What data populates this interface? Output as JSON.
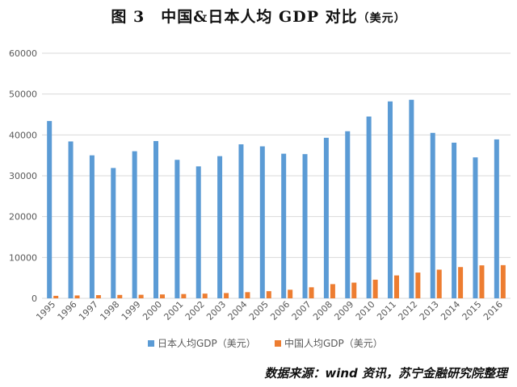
{
  "figure": {
    "title_main": "图 3　中国&日本人均 GDP 对比",
    "title_unit": "（美元）",
    "source": "数据来源：wind 资讯，苏宁金融研究院整理"
  },
  "colors": {
    "japan": "#5B9BD5",
    "china": "#ED7D31",
    "grid": "#D9D9D9",
    "axis_text": "#595959"
  },
  "chart_data": {
    "type": "bar",
    "title": "中国&日本人均 GDP 对比（美元）",
    "categories": [
      "1995",
      "1996",
      "1997",
      "1998",
      "1999",
      "2000",
      "2001",
      "2002",
      "2003",
      "2004",
      "2005",
      "2006",
      "2007",
      "2008",
      "2009",
      "2010",
      "2011",
      "2012",
      "2013",
      "2014",
      "2015",
      "2016"
    ],
    "series": [
      {
        "name": "日本人均GDP（美元）",
        "values": [
          43400,
          38400,
          35000,
          31900,
          36000,
          38500,
          33900,
          32300,
          34800,
          37700,
          37200,
          35400,
          35300,
          39300,
          40900,
          44500,
          48200,
          48600,
          40500,
          38100,
          34500,
          38900
        ]
      },
      {
        "name": "中国人均GDP（美元）",
        "values": [
          610,
          700,
          780,
          830,
          870,
          950,
          1050,
          1150,
          1290,
          1510,
          1750,
          2100,
          2700,
          3470,
          3840,
          4560,
          5600,
          6300,
          7020,
          7650,
          8070,
          8120
        ]
      }
    ],
    "yticks": [
      "0",
      "10000",
      "20000",
      "30000",
      "40000",
      "50000",
      "60000"
    ],
    "ylim": [
      0,
      60000
    ],
    "xlabel": "",
    "ylabel": "",
    "grid": true,
    "legend_position": "bottom"
  }
}
